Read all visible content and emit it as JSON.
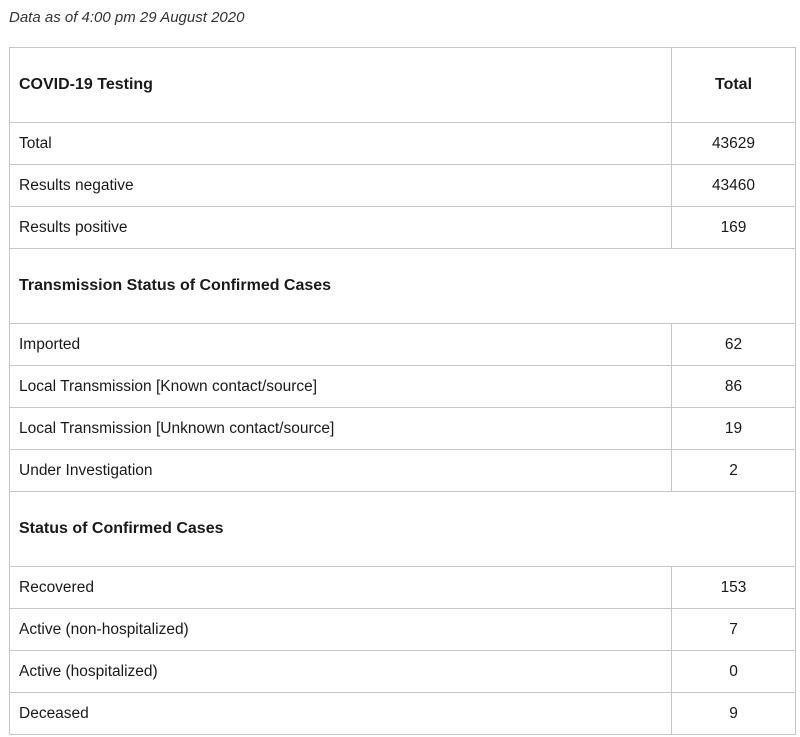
{
  "as_of": "Data as of 4:00 pm 29 August 2020",
  "table": {
    "header": {
      "label": "COVID-19 Testing",
      "value": "Total"
    },
    "testing": [
      {
        "label": "Total",
        "value": "43629"
      },
      {
        "label": "Results negative",
        "value": "43460"
      },
      {
        "label": "Results positive",
        "value": "169"
      }
    ],
    "transmission": {
      "title": "Transmission Status of Confirmed Cases",
      "rows": [
        {
          "label": "Imported",
          "value": "62"
        },
        {
          "label": "Local Transmission [Known contact/source]",
          "value": "86"
        },
        {
          "label": "Local Transmission [Unknown contact/source]",
          "value": "19"
        },
        {
          "label": "Under Investigation",
          "value": "2"
        }
      ]
    },
    "status": {
      "title": "Status of Confirmed Cases",
      "rows": [
        {
          "label": "Recovered",
          "value": "153"
        },
        {
          "label": "Active (non-hospitalized)",
          "value": "7"
        },
        {
          "label": "Active (hospitalized)",
          "value": "0"
        },
        {
          "label": "Deceased",
          "value": "9"
        }
      ]
    }
  }
}
